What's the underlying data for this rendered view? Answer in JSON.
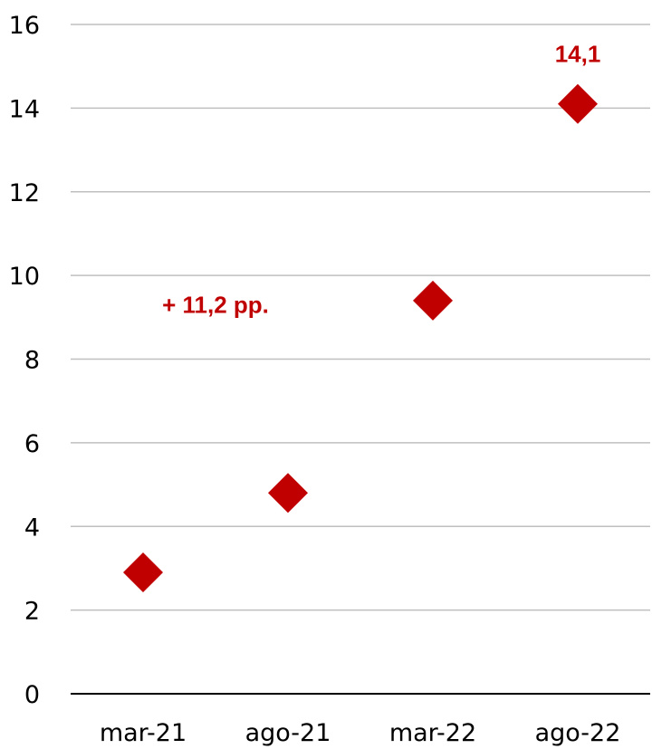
{
  "chart_data": {
    "type": "scatter",
    "categories": [
      "mar-21",
      "ago-21",
      "mar-22",
      "ago-22"
    ],
    "series": [
      {
        "values": [
          2.9,
          4.8,
          9.4,
          14.1
        ]
      }
    ],
    "ylim": [
      0,
      16
    ],
    "yticks": [
      0,
      2,
      4,
      6,
      8,
      10,
      12,
      14,
      16
    ],
    "ytick_labels": [
      "0",
      "2",
      "4",
      "6",
      "8",
      "10",
      "12",
      "14",
      "16"
    ],
    "grid": true,
    "marker": "diamond",
    "colors": {
      "marker": "#c00000",
      "annotation": "#c00000",
      "grid": "#bfbfbf",
      "axis": "#000000"
    },
    "annotations": [
      {
        "text": "14,1",
        "category": "ago-22",
        "y": 15.3
      },
      {
        "text": "+ 11,2 pp.",
        "category_between": [
          "mar-21",
          "ago-21"
        ],
        "y": 9.3
      }
    ]
  }
}
